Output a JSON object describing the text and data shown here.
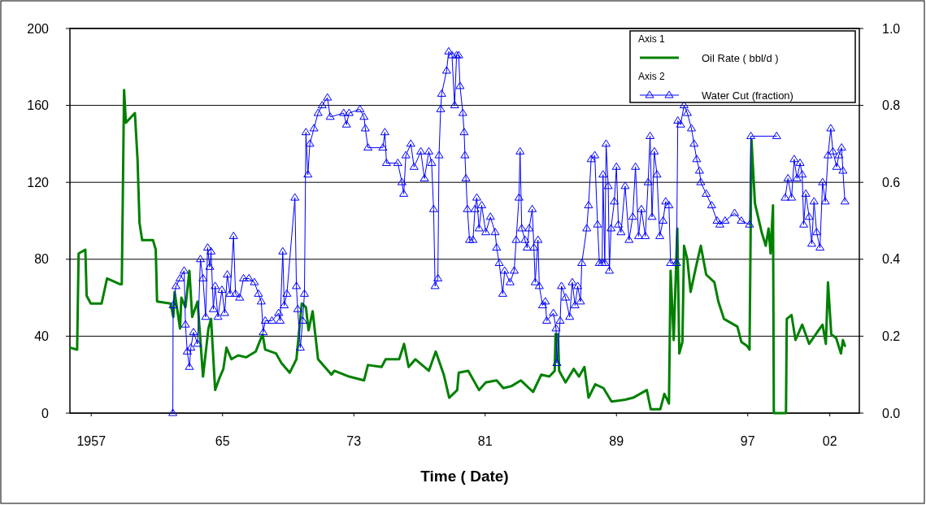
{
  "chart_data": {
    "type": "line",
    "xlabel": "Time ( Date)",
    "xlim": [
      1955.7,
      2003.8
    ],
    "xticks": [
      {
        "value": 1957,
        "label": "1957"
      },
      {
        "value": 1965,
        "label": "65"
      },
      {
        "value": 1973,
        "label": "73"
      },
      {
        "value": 1981,
        "label": "81"
      },
      {
        "value": 1989,
        "label": "89"
      },
      {
        "value": 1997,
        "label": "97"
      },
      {
        "value": 2002,
        "label": "02"
      }
    ],
    "ylim": [
      0,
      200
    ],
    "yticks": [
      0,
      40,
      80,
      120,
      160,
      200
    ],
    "y2lim": [
      0,
      1
    ],
    "y2ticks": [
      {
        "value": 0,
        "label": "0.0"
      },
      0.2,
      0.4,
      0.6,
      0.8,
      {
        "value": 1,
        "label": "1.0"
      }
    ],
    "grid": "y",
    "legend": "top right",
    "annotations": [
      "Axis 1",
      "Axis 2"
    ],
    "series": [
      {
        "name": "Oil Rate ( bbl/d )",
        "color": "#008000",
        "marker": "none",
        "x": [
          1955.73,
          1956.14,
          1956.23,
          1956.64,
          1956.72,
          1956.97,
          1957.63,
          1957.96,
          1958.77,
          1958.86,
          1959.0,
          1959.11,
          1959.66,
          1959.82,
          1959.94,
          1960.1,
          1960.76,
          1960.93,
          1961.01,
          1961.83,
          1962.0,
          1962.08,
          1962.41,
          1962.49,
          1962.74,
          1962.98,
          1963.15,
          1963.48,
          1963.81,
          1964.14,
          1964.3,
          1964.55,
          1964.8,
          1965.05,
          1965.24,
          1965.54,
          1965.95,
          1966.43,
          1967.02,
          1967.44,
          1967.6,
          1968.26,
          1968.59,
          1969.09,
          1969.5,
          1969.83,
          1970.08,
          1970.24,
          1970.49,
          1970.82,
          1971.23,
          1971.64,
          1971.81,
          1972.71,
          1973.62,
          1973.86,
          1974.69,
          1974.94,
          1975.76,
          1976.06,
          1976.34,
          1976.75,
          1977.57,
          1977.99,
          1978.48,
          1978.81,
          1979.3,
          1979.39,
          1979.97,
          1980.63,
          1981.04,
          1981.7,
          1982.11,
          1982.6,
          1983.18,
          1983.92,
          1984.42,
          1984.91,
          1985.24,
          1985.29,
          1985.44,
          1985.51,
          1985.9,
          1986.4,
          1986.72,
          1987.05,
          1987.3,
          1987.71,
          1988.21,
          1988.7,
          1989.53,
          1990.02,
          1990.85,
          1991.09,
          1991.67,
          1991.92,
          1992.2,
          1992.3,
          1992.49,
          1992.71,
          1992.83,
          1993.02,
          1993.12,
          1993.32,
          1993.52,
          1993.82,
          1994.14,
          1994.47,
          1994.97,
          1995.21,
          1995.55,
          1995.96,
          1996.37,
          1996.61,
          1996.95,
          1997.11,
          1997.23,
          1997.44,
          1997.85,
          1998.1,
          1998.27,
          1998.39,
          1998.54,
          1998.59,
          1999.33,
          1999.38,
          1999.67,
          1999.91,
          2000.32,
          2000.74,
          2001.23,
          2001.56,
          2001.76,
          2001.89,
          2002.09,
          2002.39,
          2002.68,
          2002.8,
          2002.92
        ],
        "values": [
          34,
          33,
          83,
          85,
          61,
          57,
          57,
          70,
          67,
          67,
          168,
          151,
          156,
          132,
          99,
          90,
          90,
          85,
          58,
          57,
          50,
          63,
          44,
          60,
          55,
          74,
          50,
          58,
          19,
          44,
          49,
          12,
          18,
          23,
          34,
          28,
          30,
          29,
          32,
          41,
          33,
          31,
          26,
          21,
          28,
          57,
          55,
          43,
          53,
          28,
          24,
          20,
          22,
          19,
          17,
          25,
          24,
          28,
          28,
          36,
          24,
          28,
          22,
          32,
          20,
          8,
          12,
          21,
          22,
          12,
          16,
          17,
          13,
          14,
          17,
          11,
          20,
          19,
          22,
          41,
          41,
          22,
          16,
          23,
          19,
          24,
          8,
          15,
          13,
          6,
          7,
          8,
          12,
          2,
          2,
          10,
          5,
          74,
          38,
          96,
          31,
          37,
          87,
          80,
          63,
          75,
          87,
          72,
          68,
          58,
          49,
          47,
          45,
          37,
          35,
          33,
          142,
          109,
          94,
          87,
          96,
          83,
          108,
          0,
          0,
          49,
          51,
          38,
          46,
          36,
          42,
          46,
          36,
          68,
          41,
          39,
          31,
          38,
          35
        ]
      },
      {
        "name": "Water Cut (fraction)",
        "color": "#0000ff",
        "marker": "triangle",
        "axis": "y2",
        "x": [
          1961.97,
          1961.99,
          1962.16,
          1962.41,
          1962.66,
          1962.74,
          1962.85,
          1962.98,
          1963.07,
          1963.23,
          1963.48,
          1963.65,
          1963.81,
          1963.97,
          1964.09,
          1964.22,
          1964.3,
          1964.44,
          1964.55,
          1964.72,
          1964.96,
          1965.13,
          1965.29,
          1965.46,
          1965.67,
          1965.79,
          1966.04,
          1966.28,
          1966.61,
          1966.94,
          1967.19,
          1967.36,
          1967.48,
          1967.6,
          1968.01,
          1968.42,
          1968.51,
          1968.67,
          1968.76,
          1968.92,
          1969.41,
          1969.5,
          1969.58,
          1969.74,
          1969.88,
          1969.99,
          1970.08,
          1970.2,
          1970.32,
          1970.57,
          1970.82,
          1971.07,
          1971.39,
          1971.56,
          1972.38,
          1972.55,
          1972.71,
          1973.37,
          1973.62,
          1973.7,
          1973.86,
          1974.77,
          1974.89,
          1974.99,
          1975.68,
          1975.93,
          1976.04,
          1976.17,
          1976.47,
          1976.67,
          1977.08,
          1977.3,
          1977.57,
          1977.74,
          1977.86,
          1977.95,
          1978.12,
          1978.19,
          1978.29,
          1978.35,
          1978.65,
          1978.78,
          1978.98,
          1979.14,
          1979.26,
          1979.39,
          1979.47,
          1979.64,
          1979.72,
          1979.77,
          1979.83,
          1979.92,
          1980.05,
          1980.26,
          1980.38,
          1980.49,
          1980.63,
          1980.79,
          1981.04,
          1981.32,
          1981.61,
          1981.7,
          1981.86,
          1982.07,
          1982.19,
          1982.52,
          1982.77,
          1982.89,
          1983.06,
          1983.13,
          1983.23,
          1983.43,
          1983.56,
          1983.68,
          1983.87,
          1983.97,
          1984.05,
          1984.22,
          1984.3,
          1984.5,
          1984.67,
          1984.75,
          1985.16,
          1985.32,
          1985.37,
          1985.57,
          1985.65,
          1985.9,
          1986.15,
          1986.31,
          1986.48,
          1986.64,
          1986.81,
          1986.89,
          1987.19,
          1987.3,
          1987.46,
          1987.68,
          1987.85,
          1987.96,
          1988.13,
          1988.18,
          1988.29,
          1988.37,
          1988.5,
          1988.57,
          1988.67,
          1988.87,
          1989.0,
          1989.12,
          1989.28,
          1989.53,
          1989.77,
          1989.99,
          1990.16,
          1990.35,
          1990.52,
          1990.76,
          1990.93,
          1991.05,
          1991.17,
          1991.31,
          1991.47,
          1991.64,
          1991.84,
          1992.0,
          1992.2,
          1992.3,
          1992.66,
          1992.74,
          1992.91,
          1993.12,
          1993.32,
          1993.57,
          1993.73,
          1993.89,
          1994.06,
          1994.14,
          1994.47,
          1994.8,
          1995.13,
          1995.3,
          1995.62,
          1996.2,
          1996.61,
          1997.11,
          1997.19,
          1998.76,
          1999.0,
          1999.28,
          1999.45,
          1999.67,
          1999.83,
          2000.0,
          2000.19,
          2000.32,
          2000.41,
          2000.54,
          2000.74,
          2000.9,
          2001.04,
          2001.2,
          2001.4,
          2001.56,
          2001.73,
          2001.89,
          2002.06,
          2002.19,
          2002.42,
          2002.55,
          2002.72,
          2002.8,
          2002.92
        ],
        "values": [
          0.0,
          0.28,
          0.33,
          0.35,
          0.37,
          0.23,
          0.16,
          0.12,
          0.17,
          0.21,
          0.18,
          0.4,
          0.35,
          0.25,
          0.43,
          0.38,
          0.42,
          0.27,
          0.33,
          0.25,
          0.32,
          0.26,
          0.36,
          0.31,
          0.46,
          0.31,
          0.3,
          0.35,
          0.35,
          0.34,
          0.31,
          0.29,
          0.21,
          0.24,
          0.24,
          0.26,
          0.24,
          0.42,
          0.28,
          0.31,
          0.56,
          0.33,
          0.27,
          0.17,
          0.24,
          0.31,
          0.73,
          0.62,
          0.7,
          0.74,
          0.78,
          0.8,
          0.82,
          0.77,
          0.78,
          0.75,
          0.78,
          0.79,
          0.77,
          0.74,
          0.69,
          0.69,
          0.73,
          0.65,
          0.65,
          0.6,
          0.57,
          0.67,
          0.7,
          0.64,
          0.68,
          0.61,
          0.68,
          0.65,
          0.53,
          0.33,
          0.35,
          0.67,
          0.79,
          0.83,
          0.89,
          0.94,
          0.93,
          0.8,
          0.93,
          0.93,
          0.85,
          0.78,
          0.73,
          0.67,
          0.61,
          0.53,
          0.45,
          0.45,
          0.53,
          0.56,
          0.48,
          0.54,
          0.47,
          0.51,
          0.47,
          0.43,
          0.39,
          0.31,
          0.37,
          0.34,
          0.37,
          0.45,
          0.56,
          0.68,
          0.48,
          0.45,
          0.43,
          0.48,
          0.53,
          0.43,
          0.34,
          0.45,
          0.33,
          0.28,
          0.29,
          0.24,
          0.26,
          0.22,
          0.13,
          0.24,
          0.33,
          0.3,
          0.25,
          0.34,
          0.28,
          0.33,
          0.29,
          0.39,
          0.48,
          0.54,
          0.66,
          0.67,
          0.49,
          0.39,
          0.39,
          0.62,
          0.39,
          0.7,
          0.59,
          0.37,
          0.48,
          0.55,
          0.64,
          0.49,
          0.47,
          0.59,
          0.45,
          0.51,
          0.64,
          0.46,
          0.53,
          0.46,
          0.6,
          0.72,
          0.51,
          0.68,
          0.62,
          0.46,
          0.5,
          0.55,
          0.54,
          0.39,
          0.39,
          0.76,
          0.75,
          0.8,
          0.78,
          0.74,
          0.7,
          0.66,
          0.63,
          0.6,
          0.57,
          0.54,
          0.5,
          0.49,
          0.5,
          0.52,
          0.5,
          0.49,
          0.72,
          0.72,
          null,
          0.56,
          0.61,
          0.56,
          0.66,
          0.61,
          0.65,
          0.62,
          0.49,
          0.57,
          0.51,
          0.44,
          0.55,
          0.47,
          0.43,
          0.6,
          0.55,
          0.67,
          0.74,
          0.68,
          0.64,
          0.67,
          0.69,
          0.63,
          0.55
        ]
      }
    ]
  }
}
